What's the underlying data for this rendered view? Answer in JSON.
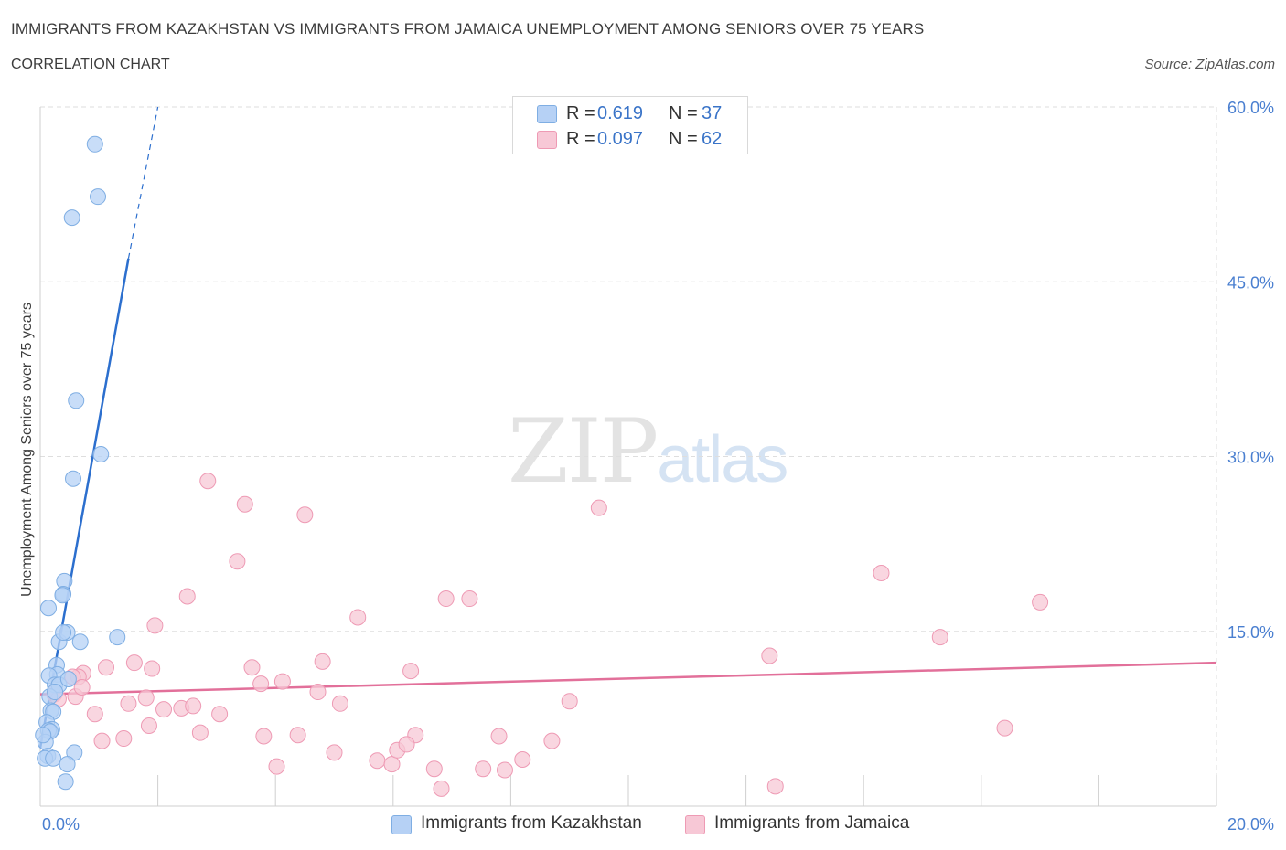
{
  "header": {
    "title": "IMMIGRANTS FROM KAZAKHSTAN VS IMMIGRANTS FROM JAMAICA UNEMPLOYMENT AMONG SENIORS OVER 75 YEARS",
    "subtitle": "CORRELATION CHART",
    "source": "Source: ZipAtlas.com"
  },
  "watermark": {
    "zip": "ZIP",
    "atlas": "atlas"
  },
  "legend": {
    "r_label": "R =",
    "n_label": "N =",
    "series": [
      {
        "name": "Immigrants from Kazakhstan",
        "r": "0.619",
        "n": "37"
      },
      {
        "name": "Immigrants from Jamaica",
        "r": "0.097",
        "n": "62"
      }
    ]
  },
  "colors": {
    "kazakhstan_fill": "#b6d1f5",
    "kazakhstan_stroke": "#7faee3",
    "kazakhstan_line": "#2c6fce",
    "jamaica_fill": "#f7c8d6",
    "jamaica_stroke": "#ee9ab4",
    "jamaica_line": "#e2709a",
    "tick_text": "#4a7fd0",
    "grid": "#dedede"
  },
  "chart_data": {
    "type": "scatter",
    "title": "IMMIGRANTS FROM KAZAKHSTAN VS IMMIGRANTS FROM JAMAICA UNEMPLOYMENT AMONG SENIORS OVER 75 YEARS",
    "xlabel": "",
    "ylabel": "Unemployment Among Seniors over 75 years",
    "xlim": [
      0,
      20
    ],
    "ylim": [
      0,
      60
    ],
    "x_tick_labels": [
      "0.0%",
      "20.0%"
    ],
    "y_ticks": [
      15,
      30,
      45,
      60
    ],
    "y_tick_labels": [
      "15.0%",
      "30.0%",
      "45.0%",
      "60.0%"
    ],
    "grid": true,
    "series": [
      {
        "name": "Immigrants from Kazakhstan",
        "x": [
          0.93,
          0.98,
          0.54,
          0.61,
          1.03,
          0.56,
          0.41,
          0.39,
          0.38,
          0.14,
          0.32,
          0.46,
          0.39,
          1.31,
          0.68,
          0.28,
          0.29,
          0.15,
          0.25,
          0.32,
          0.48,
          0.16,
          0.18,
          0.22,
          0.11,
          0.2,
          0.14,
          0.17,
          0.09,
          0.13,
          0.08,
          0.58,
          0.22,
          0.46,
          0.43,
          0.05,
          0.25
        ],
        "y": [
          56.8,
          52.3,
          50.5,
          34.8,
          30.2,
          28.1,
          19.3,
          18.2,
          18.1,
          17.0,
          14.1,
          14.9,
          14.9,
          14.5,
          14.1,
          12.1,
          11.3,
          11.2,
          10.4,
          10.4,
          10.9,
          9.4,
          8.2,
          8.1,
          7.2,
          6.6,
          6.5,
          6.4,
          5.5,
          4.3,
          4.1,
          4.6,
          4.1,
          3.6,
          2.1,
          6.1,
          9.8
        ],
        "trendline": {
          "x": [
            0.0,
            1.5
          ],
          "y": [
            5.0,
            47.0
          ],
          "dashed_extension": {
            "x": [
              1.5,
              2.0
            ],
            "y": [
              47.0,
              60.0
            ]
          }
        }
      },
      {
        "name": "Immigrants from Jamaica",
        "x": [
          2.85,
          3.48,
          4.5,
          9.5,
          3.35,
          2.5,
          1.95,
          6.9,
          5.4,
          7.3,
          14.3,
          17.0,
          15.3,
          12.4,
          4.8,
          1.12,
          1.6,
          1.9,
          3.6,
          4.12,
          4.72,
          6.3,
          0.73,
          1.8,
          2.4,
          2.6,
          0.6,
          5.1,
          3.75,
          0.24,
          4.38,
          0.65,
          0.93,
          2.72,
          1.5,
          1.05,
          3.05,
          5.0,
          3.8,
          1.85,
          5.73,
          5.98,
          6.38,
          7.8,
          8.7,
          9.0,
          16.4,
          1.42,
          0.25,
          0.55,
          0.31,
          0.71,
          7.9,
          4.02,
          7.53,
          6.07,
          6.23,
          8.2,
          6.82,
          6.7,
          12.5,
          2.1
        ],
        "y": [
          27.9,
          25.9,
          25.0,
          25.6,
          21.0,
          18.0,
          15.5,
          17.8,
          16.2,
          17.8,
          20.0,
          17.5,
          14.5,
          12.9,
          12.4,
          11.9,
          12.3,
          11.8,
          11.9,
          10.7,
          9.8,
          11.6,
          11.4,
          9.3,
          8.4,
          8.6,
          9.4,
          8.8,
          10.5,
          9.6,
          6.1,
          11.1,
          7.9,
          6.3,
          8.8,
          5.6,
          7.9,
          4.6,
          6.0,
          6.9,
          3.9,
          3.6,
          6.1,
          6.0,
          5.6,
          9.0,
          6.7,
          5.8,
          9.7,
          11.1,
          9.2,
          10.2,
          3.1,
          3.4,
          3.2,
          4.8,
          5.3,
          4.0,
          1.5,
          3.2,
          1.7,
          8.3
        ],
        "trendline": {
          "x": [
            0.0,
            20.0
          ],
          "y": [
            9.6,
            12.3
          ]
        }
      }
    ]
  }
}
